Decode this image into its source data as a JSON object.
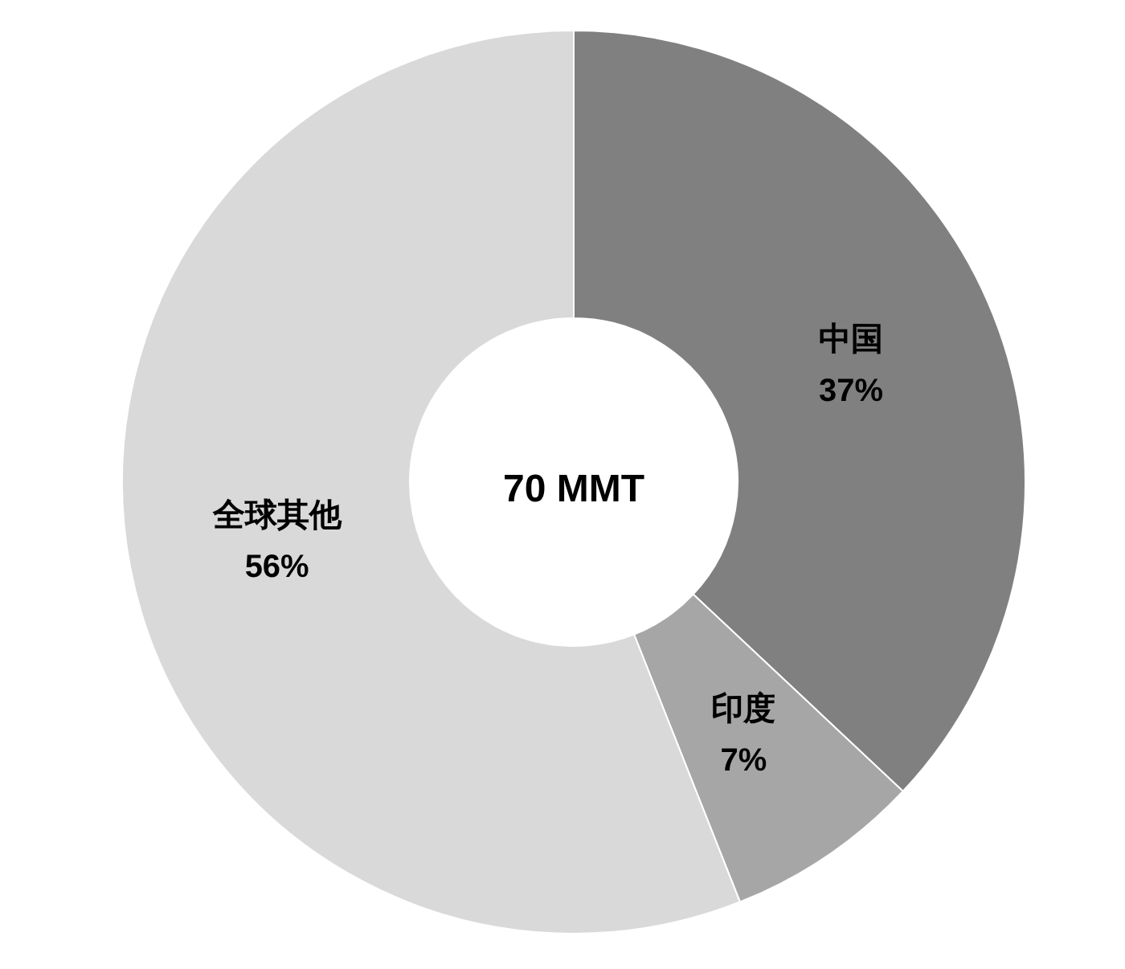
{
  "chart_data": {
    "type": "donut",
    "categories": [
      "中国",
      "印度",
      "全球其他"
    ],
    "values": [
      37,
      7,
      56
    ],
    "colors": [
      "#808080",
      "#a6a6a6",
      "#d9d9d9"
    ],
    "value_labels": [
      "37%",
      "7%",
      "56%"
    ],
    "annotations": [
      "70 MMT"
    ]
  }
}
